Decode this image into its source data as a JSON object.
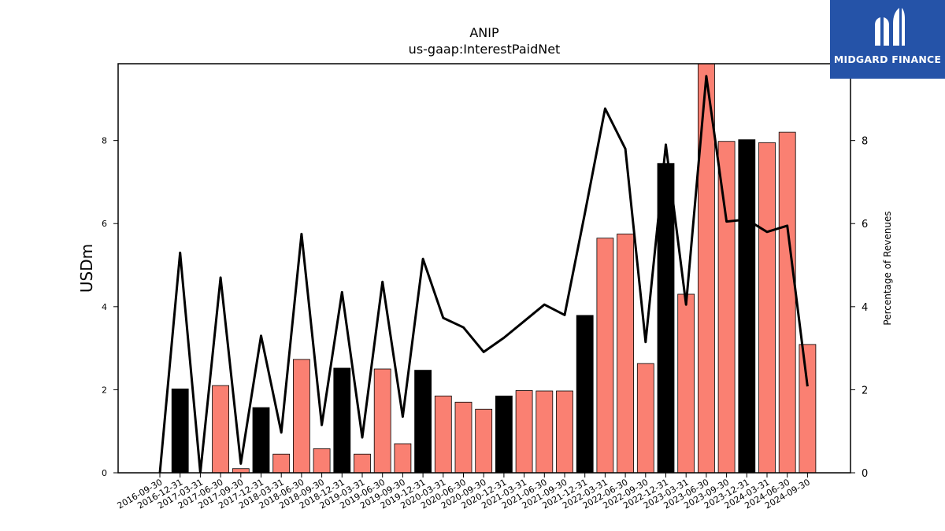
{
  "logo": {
    "text": "MIDGARD FINANCE",
    "background": "#2553a8"
  },
  "chart_data": {
    "type": "bar",
    "title": "ANIP",
    "subtitle": "us-gaap:InterestPaidNet",
    "ylabel": "USDm",
    "ylabel_right": "Percentage of Revenues",
    "ylim": [
      0,
      9.85
    ],
    "ylim_right": [
      0,
      9.85
    ],
    "yticks": [
      0,
      2,
      4,
      6,
      8
    ],
    "yticks_right": [
      0,
      2,
      4,
      6,
      8
    ],
    "colors": {
      "annual": "#000000",
      "quarterly": "#fa8072",
      "line": "#000000"
    },
    "categories": [
      "2016-09-30",
      "2016-12-31",
      "2017-03-31",
      "2017-06-30",
      "2017-09-30",
      "2017-12-31",
      "2018-03-31",
      "2018-06-30",
      "2018-09-30",
      "2018-12-31",
      "2019-03-31",
      "2019-06-30",
      "2019-09-30",
      "2019-12-31",
      "2020-03-31",
      "2020-06-30",
      "2020-09-30",
      "2020-12-31",
      "2021-03-31",
      "2021-06-30",
      "2021-09-30",
      "2021-12-31",
      "2022-03-31",
      "2022-06-30",
      "2022-09-30",
      "2022-12-31",
      "2023-03-31",
      "2023-06-30",
      "2023-09-30",
      "2023-12-31",
      "2024-03-31",
      "2024-06-30",
      "2024-09-30"
    ],
    "series": [
      {
        "kind": "bar",
        "values": [
          0,
          2.02,
          0,
          2.1,
          0.1,
          1.57,
          0.45,
          2.73,
          0.58,
          2.52,
          0.45,
          2.5,
          0.7,
          2.47,
          1.85,
          1.7,
          1.53,
          1.85,
          1.98,
          1.97,
          1.97,
          3.79,
          5.65,
          5.75,
          2.63,
          7.45,
          4.3,
          9.9,
          7.98,
          8.02,
          7.95,
          8.2,
          3.09
        ],
        "bar_type": [
          "quarterly",
          "annual",
          "quarterly",
          "quarterly",
          "quarterly",
          "annual",
          "quarterly",
          "quarterly",
          "quarterly",
          "annual",
          "quarterly",
          "quarterly",
          "quarterly",
          "annual",
          "quarterly",
          "quarterly",
          "quarterly",
          "annual",
          "quarterly",
          "quarterly",
          "quarterly",
          "annual",
          "quarterly",
          "quarterly",
          "quarterly",
          "annual",
          "quarterly",
          "quarterly",
          "quarterly",
          "annual",
          "quarterly",
          "quarterly",
          "quarterly"
        ]
      },
      {
        "kind": "line",
        "axis": "right",
        "values": [
          0,
          5.3,
          0,
          4.7,
          0.22,
          3.3,
          0.97,
          5.75,
          1.15,
          4.35,
          0.85,
          4.6,
          1.35,
          5.15,
          3.73,
          3.5,
          2.91,
          3.25,
          3.65,
          4.05,
          3.8,
          6.25,
          8.77,
          7.8,
          3.15,
          7.9,
          4.05,
          9.55,
          6.05,
          6.1,
          5.8,
          5.95,
          2.08
        ]
      }
    ]
  }
}
